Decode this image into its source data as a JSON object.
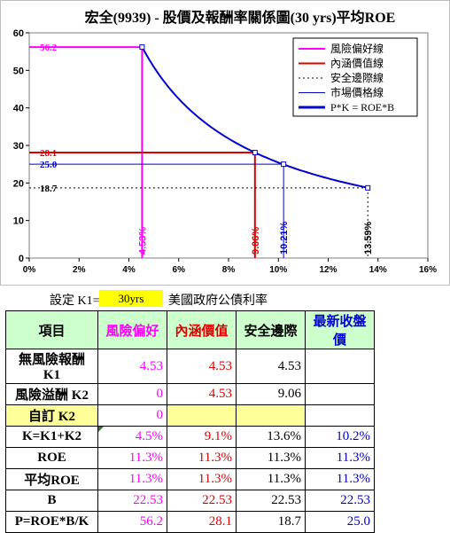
{
  "chart_data": {
    "type": "line",
    "title": "宏全(9939) - 股價及報酬率關係圖(30 yrs)平均ROE",
    "xlim": [
      0,
      0.16
    ],
    "ylim": [
      0,
      60
    ],
    "x_ticks": [
      "0%",
      "2%",
      "4%",
      "6%",
      "8%",
      "10%",
      "12%",
      "14%",
      "16%"
    ],
    "x_tick_values": [
      0,
      0.02,
      0.04,
      0.06,
      0.08,
      0.1,
      0.12,
      0.14,
      0.16
    ],
    "y_ticks": [
      "0",
      "10",
      "20",
      "30",
      "40",
      "50",
      "60"
    ],
    "y_tick_values": [
      0,
      10,
      20,
      30,
      40,
      50,
      60
    ],
    "curve": {
      "name": "P*K = ROE*B",
      "numerator": 2.546,
      "x_start": 0.0453,
      "x_end": 0.1359,
      "color": "#0000cc"
    },
    "series": [
      {
        "name": "風險偏好線",
        "color": "#ff00ff",
        "style": "solid",
        "x": 0.0453,
        "y": 56.2,
        "price_label": "56.2",
        "pct_label": "4.53%"
      },
      {
        "name": "內涵價值線",
        "color": "#dd0000",
        "style": "solid",
        "x": 0.0906,
        "y": 28.1,
        "price_label": "28.1",
        "pct_label": "9.06%"
      },
      {
        "name": "安全邊際線",
        "color": "#000000",
        "style": "dotted",
        "x": 0.1359,
        "y": 18.7,
        "price_label": "18.7",
        "pct_label": "13.59%"
      },
      {
        "name": "市場價格線",
        "color": "#0000cc",
        "style": "thin",
        "x": 0.1021,
        "y": 25.0,
        "price_label": "25.0",
        "pct_label": "10.21%"
      }
    ],
    "legend_position": "top-right",
    "grid": false
  },
  "settings": {
    "label": "設定 K1=",
    "value": "30yrs",
    "description": "美國政府公債利率"
  },
  "table": {
    "header": [
      "項目",
      "風險偏好",
      "內涵價值",
      "安全邊際",
      "最新收盤價"
    ],
    "rows": [
      {
        "label": "無風險報酬 K1",
        "cells": [
          "4.53",
          "4.53",
          "4.53",
          ""
        ]
      },
      {
        "label": "風險溢酬 K2",
        "cells": [
          "0",
          "4.53",
          "9.06",
          ""
        ]
      },
      {
        "label": "自訂 K2",
        "cells": [
          "0",
          "",
          "",
          ""
        ]
      },
      {
        "label": "K=K1+K2",
        "cells": [
          "4.5%",
          "9.1%",
          "13.6%",
          "10.2%"
        ]
      },
      {
        "label": "ROE",
        "cells": [
          "11.3%",
          "11.3%",
          "11.3%",
          "11.3%"
        ]
      },
      {
        "label": "平均ROE",
        "cells": [
          "11.3%",
          "11.3%",
          "11.3%",
          "11.3%"
        ]
      },
      {
        "label": "B",
        "cells": [
          "22.53",
          "22.53",
          "22.53",
          "22.53"
        ]
      },
      {
        "label": "P=ROE*B/K",
        "cells": [
          "56.2",
          "28.1",
          "18.7",
          "25.0"
        ]
      }
    ]
  }
}
